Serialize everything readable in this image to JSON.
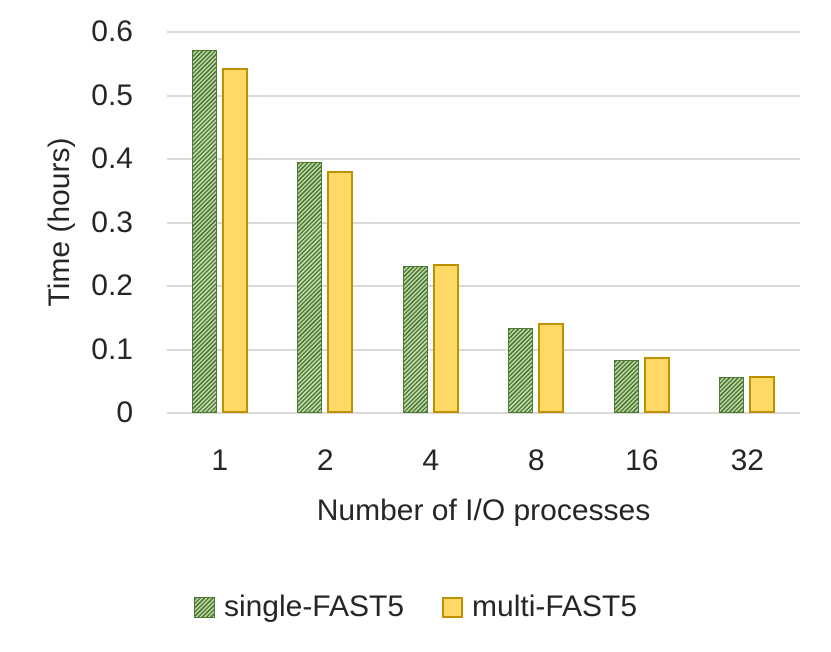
{
  "chart_data": {
    "type": "bar",
    "title": "",
    "categories": [
      "1",
      "2",
      "4",
      "8",
      "16",
      "32"
    ],
    "series": [
      {
        "name": "single-FAST5",
        "values": [
          0.572,
          0.396,
          0.232,
          0.134,
          0.084,
          0.056
        ],
        "fill_style": "diagonal-hatch",
        "hatch_dark": "#4E7A33",
        "hatch_light": "#C3DCAE"
      },
      {
        "name": "multi-FAST5",
        "values": [
          0.543,
          0.381,
          0.234,
          0.141,
          0.088,
          0.058
        ],
        "fill_style": "solid",
        "fill": "#FFD966",
        "border": "#BF9000"
      }
    ],
    "xlabel": "Number of I/O processes",
    "ylabel": "Time (hours)",
    "ylim": [
      0,
      0.6
    ],
    "ytick_step": 0.1,
    "yticks": [
      "0",
      "0.1",
      "0.2",
      "0.3",
      "0.4",
      "0.5",
      "0.6"
    ],
    "grid": "horizontal",
    "gridline_color": "#D9D9D9",
    "text_color": "#262626",
    "legend_position": "bottom"
  }
}
